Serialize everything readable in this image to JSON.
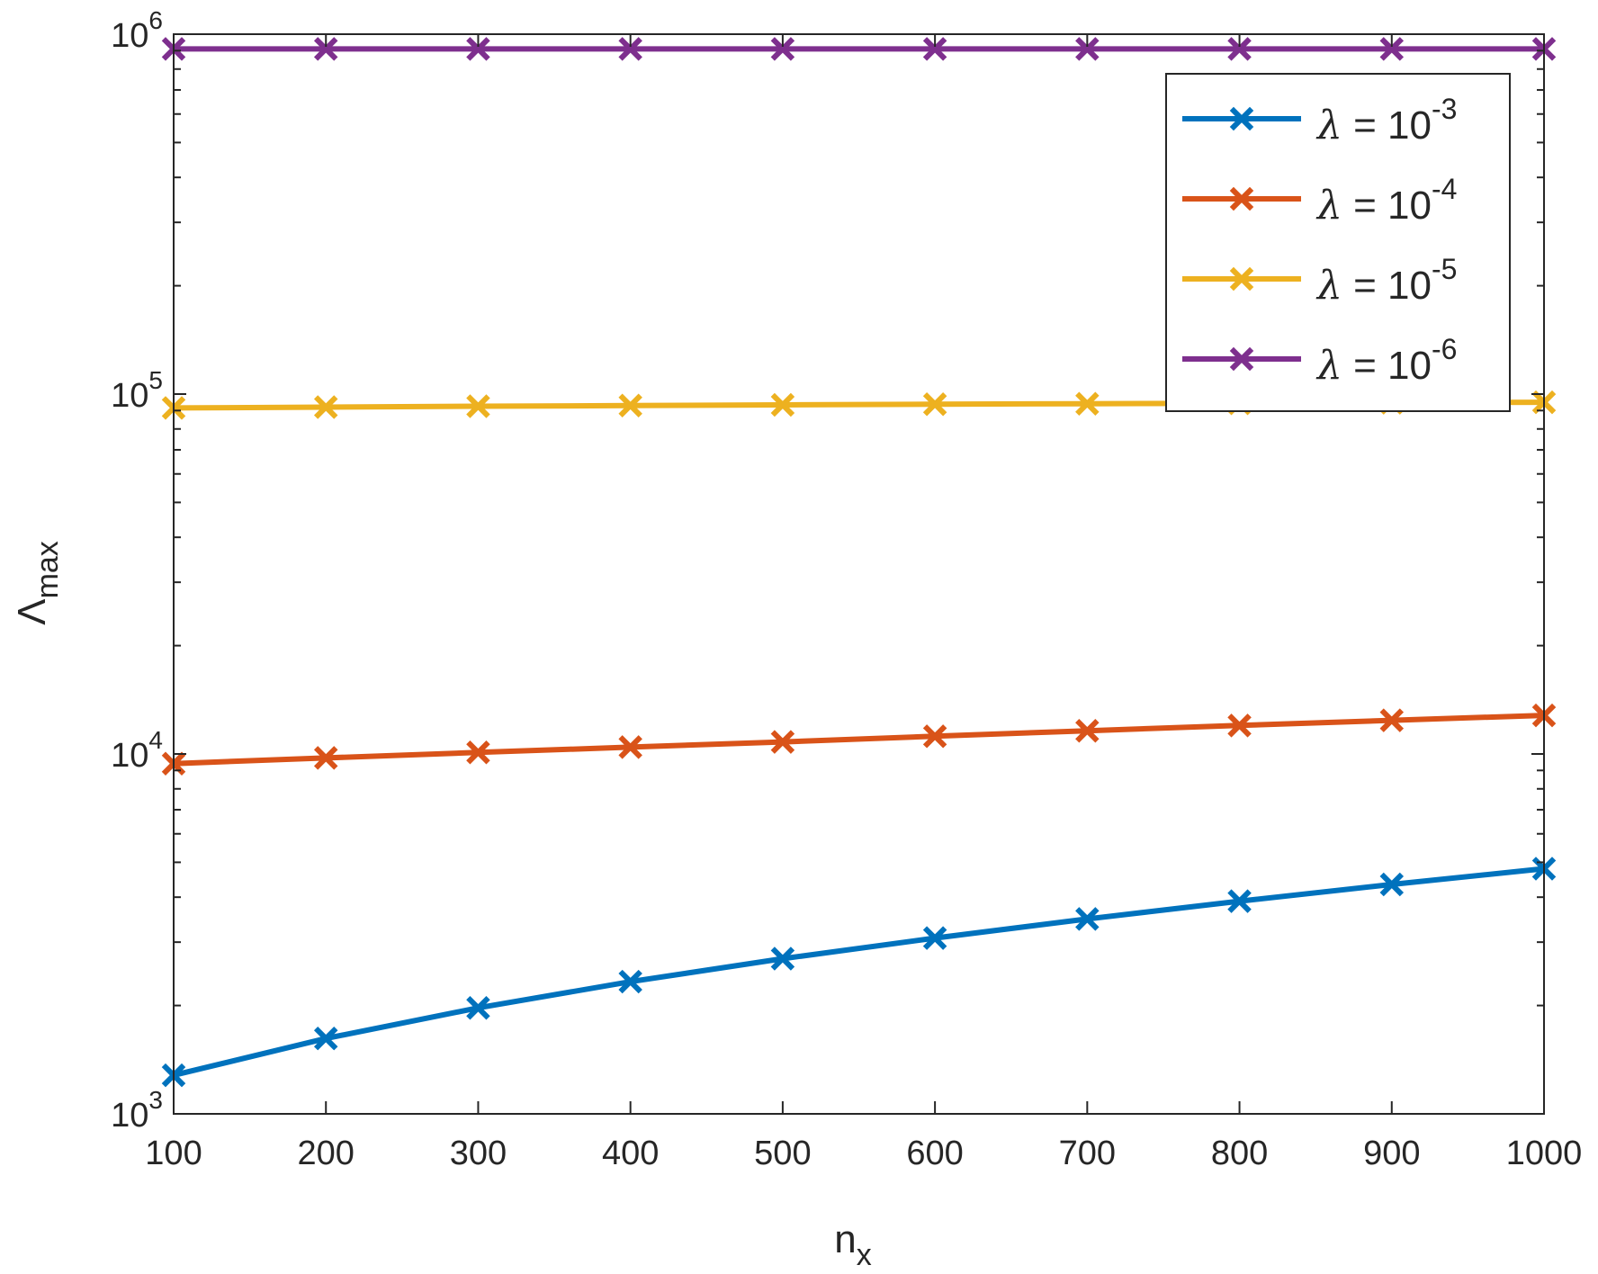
{
  "chart_data": {
    "type": "line",
    "title": "",
    "xlabel": {
      "base": "n",
      "sub": "x"
    },
    "ylabel": {
      "base": "Λ",
      "sub": "max"
    },
    "xscale": "linear",
    "yscale": "log",
    "xlim": [
      100,
      1000
    ],
    "ylim": [
      1000,
      1000000
    ],
    "x_ticks": [
      100,
      200,
      300,
      400,
      500,
      600,
      700,
      800,
      900,
      1000
    ],
    "x_tick_labels": [
      "100",
      "200",
      "300",
      "400",
      "500",
      "600",
      "700",
      "800",
      "900",
      "1000"
    ],
    "y_ticks": [
      {
        "value": 1000,
        "base": "10",
        "exp": "3"
      },
      {
        "value": 10000,
        "base": "10",
        "exp": "4"
      },
      {
        "value": 100000,
        "base": "10",
        "exp": "5"
      },
      {
        "value": 1000000,
        "base": "10",
        "exp": "6"
      }
    ],
    "grid": false,
    "box": true,
    "legend_position": "top-right",
    "x": [
      100,
      200,
      300,
      400,
      500,
      600,
      700,
      800,
      900,
      1000
    ],
    "series": [
      {
        "name": "λ = 10-3",
        "symbol": "λ",
        "text": " = 10",
        "exp": "-3",
        "color": "#0072BD",
        "marker": "x",
        "values": [
          1280,
          1620,
          1970,
          2330,
          2700,
          3080,
          3480,
          3900,
          4340,
          4800
        ]
      },
      {
        "name": "λ = 10-4",
        "symbol": "λ",
        "text": " = 10",
        "exp": "-4",
        "color": "#D95319",
        "marker": "x",
        "values": [
          9400,
          9750,
          10100,
          10450,
          10800,
          11200,
          11600,
          12000,
          12400,
          12800
        ]
      },
      {
        "name": "λ = 10-5",
        "symbol": "λ",
        "text": " = 10",
        "exp": "-5",
        "color": "#EDB120",
        "marker": "x",
        "values": [
          91500,
          92000,
          92500,
          92900,
          93300,
          93700,
          94000,
          94300,
          94600,
          94900
        ]
      },
      {
        "name": "λ = 10-6",
        "symbol": "λ",
        "text": " = 10",
        "exp": "-6",
        "color": "#7E2F8E",
        "marker": "x",
        "values": [
          910000,
          910000,
          910000,
          910000,
          910000,
          910000,
          910000,
          910000,
          910000,
          910000
        ]
      }
    ]
  }
}
